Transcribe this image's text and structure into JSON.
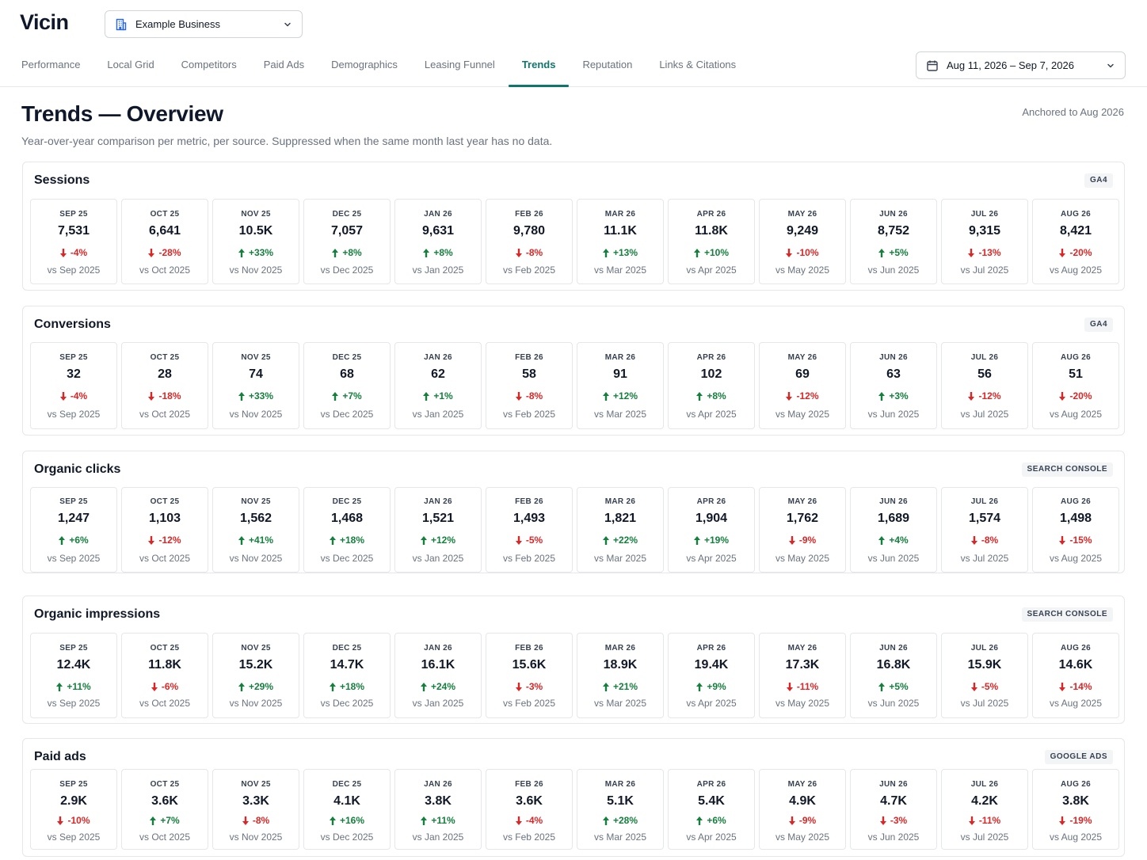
{
  "app": {
    "logo": "Vicin",
    "business_select": "Example Business",
    "date_range": "Aug 11, 2026 – Sep 7, 2026",
    "accent_color": "#0f766e",
    "up_color": "#15803d",
    "down_color": "#dc2626"
  },
  "tabs": [
    {
      "label": "Performance",
      "active": false
    },
    {
      "label": "Local Grid",
      "active": false
    },
    {
      "label": "Competitors",
      "active": false
    },
    {
      "label": "Paid Ads",
      "active": false
    },
    {
      "label": "Demographics",
      "active": false
    },
    {
      "label": "Leasing Funnel",
      "active": false
    },
    {
      "label": "Trends",
      "active": true
    },
    {
      "label": "Reputation",
      "active": false
    },
    {
      "label": "Links & Citations",
      "active": false
    }
  ],
  "page": {
    "title": "Trends — Overview",
    "anchored": "Anchored to Aug 2026",
    "subtitle": "Year-over-year comparison per metric, per source. Suppressed when the same month last year has no data."
  },
  "sections": [
    {
      "title": "Sessions",
      "source": "GA4",
      "cards": [
        {
          "month": "SEP 25",
          "value": "7,531",
          "delta": "-4%",
          "dir": "down",
          "compare": "vs Sep 2025"
        },
        {
          "month": "OCT 25",
          "value": "6,641",
          "delta": "-28%",
          "dir": "down",
          "compare": "vs Oct 2025"
        },
        {
          "month": "NOV 25",
          "value": "10.5K",
          "delta": "+33%",
          "dir": "up",
          "compare": "vs Nov 2025"
        },
        {
          "month": "DEC 25",
          "value": "7,057",
          "delta": "+8%",
          "dir": "up",
          "compare": "vs Dec 2025"
        },
        {
          "month": "JAN 26",
          "value": "9,631",
          "delta": "+8%",
          "dir": "up",
          "compare": "vs Jan 2025"
        },
        {
          "month": "FEB 26",
          "value": "9,780",
          "delta": "-8%",
          "dir": "down",
          "compare": "vs Feb 2025"
        },
        {
          "month": "MAR 26",
          "value": "11.1K",
          "delta": "+13%",
          "dir": "up",
          "compare": "vs Mar 2025"
        },
        {
          "month": "APR 26",
          "value": "11.8K",
          "delta": "+10%",
          "dir": "up",
          "compare": "vs Apr 2025"
        },
        {
          "month": "MAY 26",
          "value": "9,249",
          "delta": "-10%",
          "dir": "down",
          "compare": "vs May 2025"
        },
        {
          "month": "JUN 26",
          "value": "8,752",
          "delta": "+5%",
          "dir": "up",
          "compare": "vs Jun 2025"
        },
        {
          "month": "JUL 26",
          "value": "9,315",
          "delta": "-13%",
          "dir": "down",
          "compare": "vs Jul 2025"
        },
        {
          "month": "AUG 26",
          "value": "8,421",
          "delta": "-20%",
          "dir": "down",
          "compare": "vs Aug 2025"
        }
      ]
    },
    {
      "title": "Conversions",
      "source": "GA4",
      "cards": [
        {
          "month": "SEP 25",
          "value": "32",
          "delta": "-4%",
          "dir": "down",
          "compare": "vs Sep 2025"
        },
        {
          "month": "OCT 25",
          "value": "28",
          "delta": "-18%",
          "dir": "down",
          "compare": "vs Oct 2025"
        },
        {
          "month": "NOV 25",
          "value": "74",
          "delta": "+33%",
          "dir": "up",
          "compare": "vs Nov 2025"
        },
        {
          "month": "DEC 25",
          "value": "68",
          "delta": "+7%",
          "dir": "up",
          "compare": "vs Dec 2025"
        },
        {
          "month": "JAN 26",
          "value": "62",
          "delta": "+1%",
          "dir": "up",
          "compare": "vs Jan 2025"
        },
        {
          "month": "FEB 26",
          "value": "58",
          "delta": "-8%",
          "dir": "down",
          "compare": "vs Feb 2025"
        },
        {
          "month": "MAR 26",
          "value": "91",
          "delta": "+12%",
          "dir": "up",
          "compare": "vs Mar 2025"
        },
        {
          "month": "APR 26",
          "value": "102",
          "delta": "+8%",
          "dir": "up",
          "compare": "vs Apr 2025"
        },
        {
          "month": "MAY 26",
          "value": "69",
          "delta": "-12%",
          "dir": "down",
          "compare": "vs May 2025"
        },
        {
          "month": "JUN 26",
          "value": "63",
          "delta": "+3%",
          "dir": "up",
          "compare": "vs Jun 2025"
        },
        {
          "month": "JUL 26",
          "value": "56",
          "delta": "-12%",
          "dir": "down",
          "compare": "vs Jul 2025"
        },
        {
          "month": "AUG 26",
          "value": "51",
          "delta": "-20%",
          "dir": "down",
          "compare": "vs Aug 2025"
        }
      ]
    },
    {
      "title": "Organic clicks",
      "source": "SEARCH CONSOLE",
      "cards": [
        {
          "month": "SEP 25",
          "value": "1,247",
          "delta": "+6%",
          "dir": "up",
          "compare": "vs Sep 2025"
        },
        {
          "month": "OCT 25",
          "value": "1,103",
          "delta": "-12%",
          "dir": "down",
          "compare": "vs Oct 2025"
        },
        {
          "month": "NOV 25",
          "value": "1,562",
          "delta": "+41%",
          "dir": "up",
          "compare": "vs Nov 2025"
        },
        {
          "month": "DEC 25",
          "value": "1,468",
          "delta": "+18%",
          "dir": "up",
          "compare": "vs Dec 2025"
        },
        {
          "month": "JAN 26",
          "value": "1,521",
          "delta": "+12%",
          "dir": "up",
          "compare": "vs Jan 2025"
        },
        {
          "month": "FEB 26",
          "value": "1,493",
          "delta": "-5%",
          "dir": "down",
          "compare": "vs Feb 2025"
        },
        {
          "month": "MAR 26",
          "value": "1,821",
          "delta": "+22%",
          "dir": "up",
          "compare": "vs Mar 2025"
        },
        {
          "month": "APR 26",
          "value": "1,904",
          "delta": "+19%",
          "dir": "up",
          "compare": "vs Apr 2025"
        },
        {
          "month": "MAY 26",
          "value": "1,762",
          "delta": "-9%",
          "dir": "down",
          "compare": "vs May 2025"
        },
        {
          "month": "JUN 26",
          "value": "1,689",
          "delta": "+4%",
          "dir": "up",
          "compare": "vs Jun 2025"
        },
        {
          "month": "JUL 26",
          "value": "1,574",
          "delta": "-8%",
          "dir": "down",
          "compare": "vs Jul 2025"
        },
        {
          "month": "AUG 26",
          "value": "1,498",
          "delta": "-15%",
          "dir": "down",
          "compare": "vs Aug 2025"
        }
      ]
    },
    {
      "title": "Organic impressions",
      "source": "SEARCH CONSOLE",
      "cards": [
        {
          "month": "SEP 25",
          "value": "12.4K",
          "delta": "+11%",
          "dir": "up",
          "compare": "vs Sep 2025"
        },
        {
          "month": "OCT 25",
          "value": "11.8K",
          "delta": "-6%",
          "dir": "down",
          "compare": "vs Oct 2025"
        },
        {
          "month": "NOV 25",
          "value": "15.2K",
          "delta": "+29%",
          "dir": "up",
          "compare": "vs Nov 2025"
        },
        {
          "month": "DEC 25",
          "value": "14.7K",
          "delta": "+18%",
          "dir": "up",
          "compare": "vs Dec 2025"
        },
        {
          "month": "JAN 26",
          "value": "16.1K",
          "delta": "+24%",
          "dir": "up",
          "compare": "vs Jan 2025"
        },
        {
          "month": "FEB 26",
          "value": "15.6K",
          "delta": "-3%",
          "dir": "down",
          "compare": "vs Feb 2025"
        },
        {
          "month": "MAR 26",
          "value": "18.9K",
          "delta": "+21%",
          "dir": "up",
          "compare": "vs Mar 2025"
        },
        {
          "month": "APR 26",
          "value": "19.4K",
          "delta": "+9%",
          "dir": "up",
          "compare": "vs Apr 2025"
        },
        {
          "month": "MAY 26",
          "value": "17.3K",
          "delta": "-11%",
          "dir": "down",
          "compare": "vs May 2025"
        },
        {
          "month": "JUN 26",
          "value": "16.8K",
          "delta": "+5%",
          "dir": "up",
          "compare": "vs Jun 2025"
        },
        {
          "month": "JUL 26",
          "value": "15.9K",
          "delta": "-5%",
          "dir": "down",
          "compare": "vs Jul 2025"
        },
        {
          "month": "AUG 26",
          "value": "14.6K",
          "delta": "-14%",
          "dir": "down",
          "compare": "vs Aug 2025"
        }
      ]
    },
    {
      "title": "Paid ads",
      "source": "GOOGLE ADS",
      "cards": [
        {
          "month": "SEP 25",
          "value": "2.9K",
          "delta": "-10%",
          "dir": "down",
          "compare": "vs Sep 2025"
        },
        {
          "month": "OCT 25",
          "value": "3.6K",
          "delta": "+7%",
          "dir": "up",
          "compare": "vs Oct 2025"
        },
        {
          "month": "NOV 25",
          "value": "3.3K",
          "delta": "-8%",
          "dir": "down",
          "compare": "vs Nov 2025"
        },
        {
          "month": "DEC 25",
          "value": "4.1K",
          "delta": "+16%",
          "dir": "up",
          "compare": "vs Dec 2025"
        },
        {
          "month": "JAN 26",
          "value": "3.8K",
          "delta": "+11%",
          "dir": "up",
          "compare": "vs Jan 2025"
        },
        {
          "month": "FEB 26",
          "value": "3.6K",
          "delta": "-4%",
          "dir": "down",
          "compare": "vs Feb 2025"
        },
        {
          "month": "MAR 26",
          "value": "5.1K",
          "delta": "+28%",
          "dir": "up",
          "compare": "vs Mar 2025"
        },
        {
          "month": "APR 26",
          "value": "5.4K",
          "delta": "+6%",
          "dir": "up",
          "compare": "vs Apr 2025"
        },
        {
          "month": "MAY 26",
          "value": "4.9K",
          "delta": "-9%",
          "dir": "down",
          "compare": "vs May 2025"
        },
        {
          "month": "JUN 26",
          "value": "4.7K",
          "delta": "-3%",
          "dir": "down",
          "compare": "vs Jun 2025"
        },
        {
          "month": "JUL 26",
          "value": "4.2K",
          "delta": "-11%",
          "dir": "down",
          "compare": "vs Jul 2025"
        },
        {
          "month": "AUG 26",
          "value": "3.8K",
          "delta": "-19%",
          "dir": "down",
          "compare": "vs Aug 2025"
        }
      ]
    }
  ]
}
